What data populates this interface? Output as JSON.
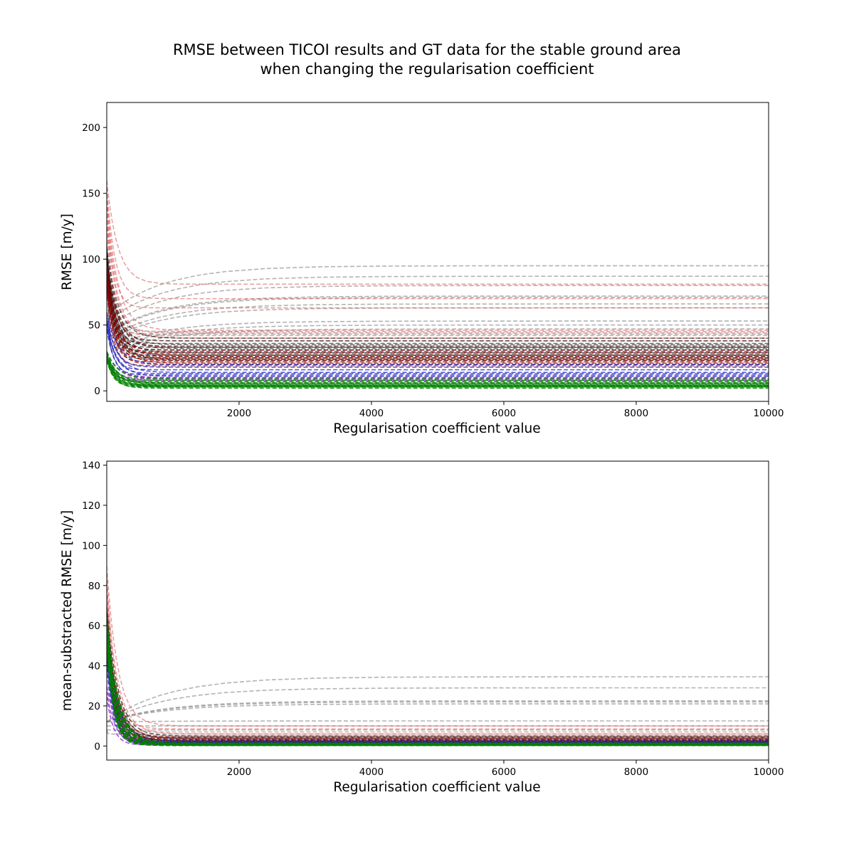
{
  "figure": {
    "title_line1": "RMSE between TICOI results and GT data for the stable ground area",
    "title_line2": "when changing the regularisation coefficient"
  },
  "chart_data": [
    {
      "type": "line",
      "title": "",
      "xlabel": "Regularisation coefficient value",
      "ylabel": "RMSE [m/y]",
      "xlim": [
        1,
        10000
      ],
      "ylim": [
        -8,
        219
      ],
      "xticks": [
        2000,
        4000,
        6000,
        8000,
        10000
      ],
      "yticks": [
        0,
        50,
        100,
        150,
        200
      ],
      "grid": false,
      "legend": "none",
      "line_style": "dashed",
      "colors": {
        "gray": "#808080",
        "black": "#000000",
        "red": "#e06060",
        "darkred": "#8b0000",
        "blue": "#2020c0",
        "purple": "#9932cc",
        "green": "#008000"
      },
      "series_summary": [
        {
          "group": "gray",
          "count": 12,
          "start": 120,
          "final_values": [
            95,
            87,
            80,
            72,
            71,
            66,
            63,
            53,
            50,
            47,
            45,
            43
          ]
        },
        {
          "group": "red",
          "count": 8,
          "start": 160,
          "final_values": [
            81,
            70,
            63,
            46,
            44,
            42,
            40,
            38
          ]
        },
        {
          "group": "black",
          "count": 16,
          "start": 110,
          "final_values": [
            40,
            38,
            36,
            35,
            34,
            33,
            32,
            31,
            30,
            29,
            28,
            27,
            26,
            25,
            24,
            23
          ]
        },
        {
          "group": "darkred",
          "count": 12,
          "start": 100,
          "final_values": [
            33,
            31,
            29,
            27,
            26,
            25,
            24,
            23,
            22,
            21,
            20,
            19
          ]
        },
        {
          "group": "blue",
          "count": 8,
          "start": 60,
          "final_values": [
            20,
            18,
            16,
            14,
            13,
            12,
            11,
            10
          ]
        },
        {
          "group": "purple",
          "count": 3,
          "start": 30,
          "final_values": [
            10,
            9,
            8
          ]
        },
        {
          "group": "green",
          "count": 14,
          "start": 30,
          "final_values": [
            9,
            8,
            7,
            6,
            6,
            5,
            5,
            4,
            4,
            4,
            3,
            3,
            3,
            2
          ]
        }
      ]
    },
    {
      "type": "line",
      "title": "",
      "xlabel": "Regularisation coefficient value",
      "ylabel": "mean-substracted RMSE [m/y]",
      "xlim": [
        1,
        10000
      ],
      "ylim": [
        -7,
        142
      ],
      "xticks": [
        2000,
        4000,
        6000,
        8000,
        10000
      ],
      "yticks": [
        0,
        20,
        40,
        60,
        80,
        100,
        120,
        140
      ],
      "grid": false,
      "legend": "none",
      "line_style": "dashed",
      "colors": {
        "gray": "#808080",
        "black": "#000000",
        "red": "#e06060",
        "darkred": "#8b0000",
        "blue": "#2020c0",
        "purple": "#9932cc",
        "green": "#008000"
      },
      "series_summary": [
        {
          "group": "gray",
          "count": 9,
          "start": 10,
          "final_values": [
            34.5,
            29,
            22,
            21,
            22.5,
            12.5,
            10,
            8,
            6
          ]
        },
        {
          "group": "red",
          "count": 6,
          "start": 90,
          "final_values": [
            10,
            8.5,
            7,
            6,
            5,
            4.5
          ]
        },
        {
          "group": "black",
          "count": 12,
          "start": 70,
          "final_values": [
            5,
            4.5,
            4,
            3.5,
            3,
            2.8,
            2.5,
            2.2,
            2,
            1.8,
            1.5,
            1.2
          ]
        },
        {
          "group": "darkred",
          "count": 8,
          "start": 60,
          "final_values": [
            4,
            3.5,
            3,
            2.5,
            2,
            1.5,
            1.2,
            1
          ]
        },
        {
          "group": "blue",
          "count": 6,
          "start": 50,
          "final_values": [
            2.5,
            2,
            1.8,
            1.5,
            1.2,
            1
          ]
        },
        {
          "group": "purple",
          "count": 3,
          "start": 30,
          "final_values": [
            1,
            0.8,
            0.5
          ]
        },
        {
          "group": "green",
          "count": 14,
          "start": 65,
          "final_values": [
            1.5,
            1.3,
            1.2,
            1,
            1,
            0.9,
            0.8,
            0.7,
            0.6,
            0.5,
            0.5,
            0.4,
            0.3,
            0.2
          ]
        }
      ]
    }
  ]
}
